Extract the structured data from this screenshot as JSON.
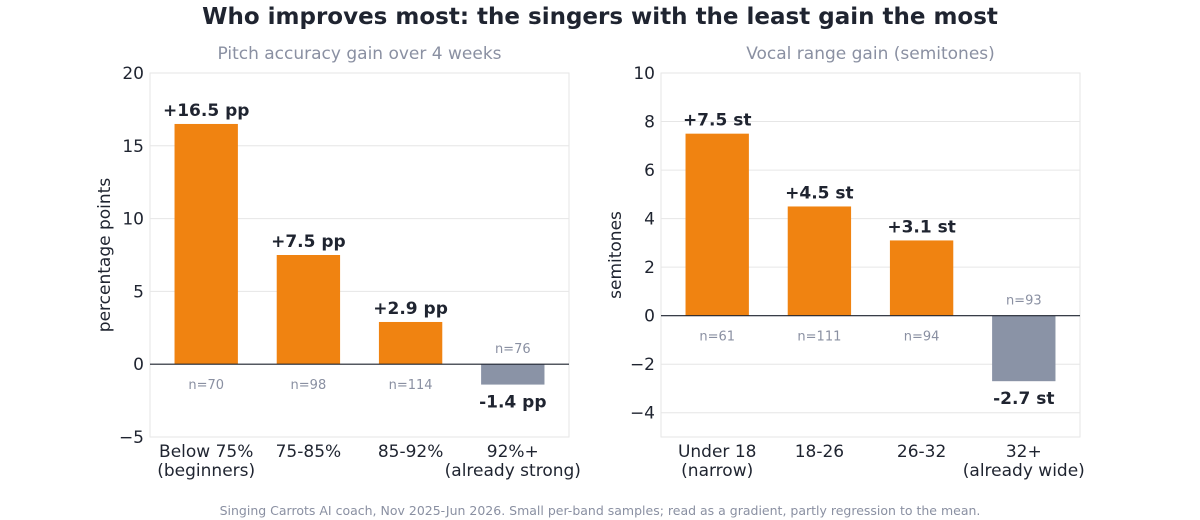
{
  "title": "Who improves most: the singers with the least gain the most",
  "footnote": "Singing Carrots AI coach, Nov 2025-Jun 2026. Small per-band samples; read as a gradient, partly regression to the mean.",
  "colors": {
    "positive": "#f08311",
    "negative": "#8a93a6",
    "grid": "#e6e6e6",
    "zero_line": "#1f2430",
    "muted_text": "#8a90a2"
  },
  "chart_data": [
    {
      "type": "bar",
      "title": "Pitch accuracy gain over 4 weeks",
      "xlabel": "",
      "ylabel": "percentage points",
      "ylim": [
        -5,
        20
      ],
      "yticks": [
        -5,
        0,
        5,
        10,
        15,
        20
      ],
      "ytick_labels": [
        "−5",
        "0",
        "5",
        "10",
        "15",
        "20"
      ],
      "grid": true,
      "categories": [
        [
          "Below 75%",
          "(beginners)"
        ],
        [
          "75-85%"
        ],
        [
          "85-92%"
        ],
        [
          "92%+",
          "(already strong)"
        ]
      ],
      "values": [
        16.5,
        7.5,
        2.9,
        -1.4
      ],
      "value_labels": [
        "+16.5 pp",
        "+7.5 pp",
        "+2.9 pp",
        "-1.4 pp"
      ],
      "n_labels": [
        "n=70",
        "n=98",
        "n=114",
        "n=76"
      ]
    },
    {
      "type": "bar",
      "title": "Vocal range gain (semitones)",
      "xlabel": "",
      "ylabel": "semitones",
      "ylim": [
        -5,
        10
      ],
      "yticks": [
        -4,
        -2,
        0,
        2,
        4,
        6,
        8,
        10
      ],
      "ytick_labels": [
        "−4",
        "−2",
        "0",
        "2",
        "4",
        "6",
        "8",
        "10"
      ],
      "grid": true,
      "categories": [
        [
          "Under 18",
          "(narrow)"
        ],
        [
          "18-26"
        ],
        [
          "26-32"
        ],
        [
          "32+",
          "(already wide)"
        ]
      ],
      "values": [
        7.5,
        4.5,
        3.1,
        -2.7
      ],
      "value_labels": [
        "+7.5 st",
        "+4.5 st",
        "+3.1 st",
        "-2.7 st"
      ],
      "n_labels": [
        "n=61",
        "n=111",
        "n=94",
        "n=93"
      ]
    }
  ]
}
